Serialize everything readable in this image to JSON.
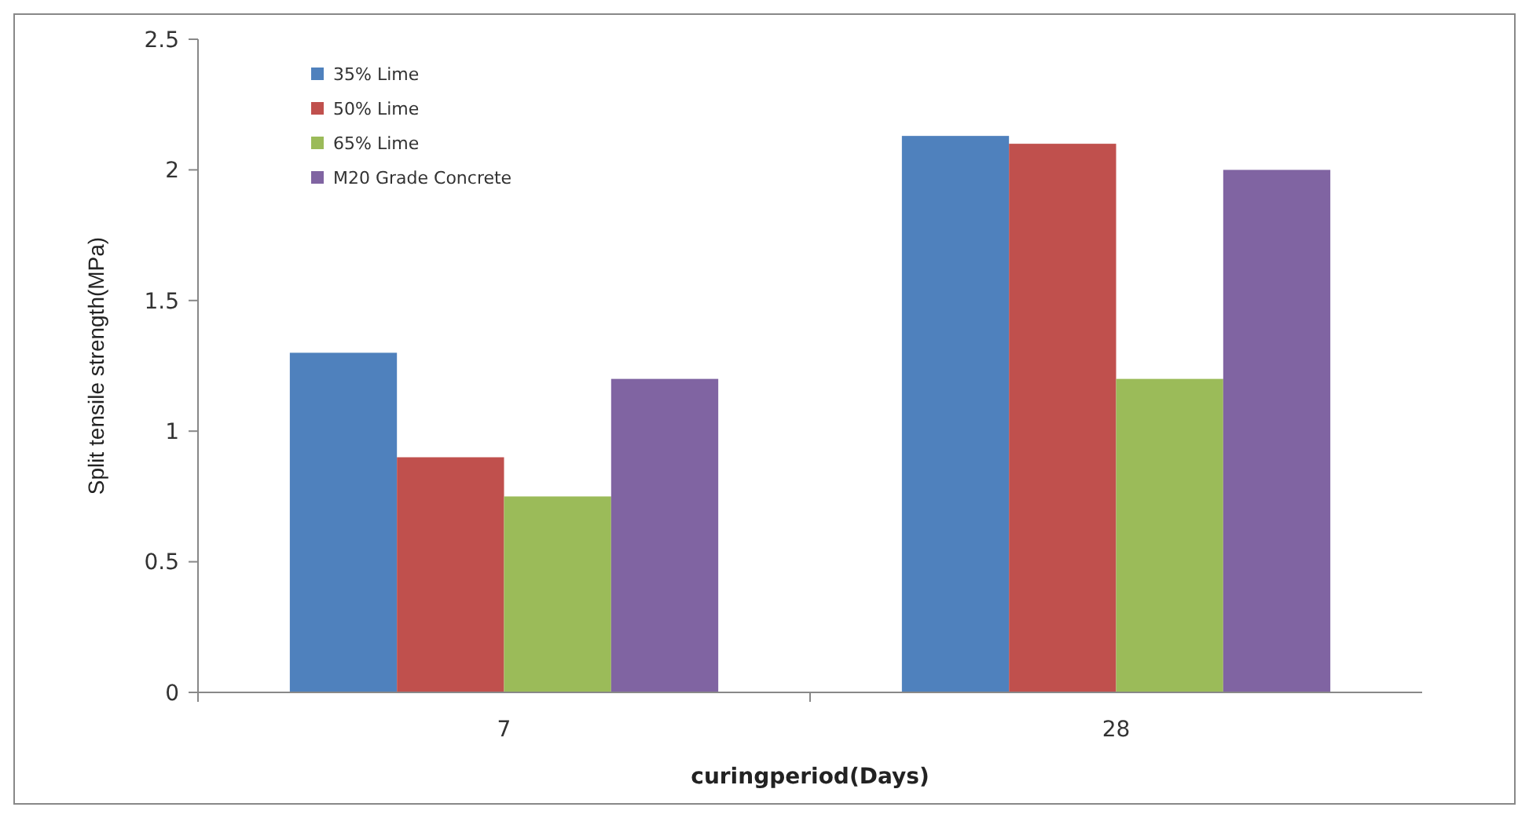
{
  "chart_data": {
    "type": "bar",
    "xlabel": "curingperiod(Days)",
    "ylabel": "Split tensile strength(MPa)",
    "categories": [
      "7",
      "28"
    ],
    "series": [
      {
        "name": "35% Lime",
        "color": "#4f81bd",
        "values": [
          1.3,
          2.13
        ]
      },
      {
        "name": "50% Lime",
        "color": "#c0504d",
        "values": [
          0.9,
          2.1
        ]
      },
      {
        "name": "65% Lime",
        "color": "#9bbb59",
        "values": [
          0.75,
          1.2
        ]
      },
      {
        "name": "M20 Grade Concrete",
        "color": "#8064a2",
        "values": [
          1.2,
          2.0
        ]
      }
    ],
    "ylim": [
      0,
      2.5
    ],
    "yticks": [
      0,
      0.5,
      1,
      1.5,
      2,
      2.5
    ],
    "legend": "top left"
  }
}
